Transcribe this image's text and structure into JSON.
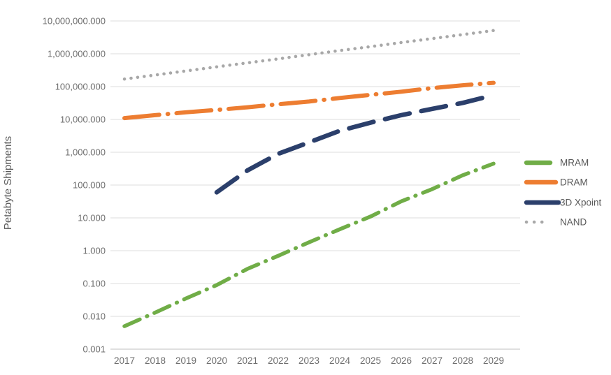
{
  "chart_data": {
    "type": "line",
    "title": "",
    "xlabel": "",
    "ylabel": "Petabyte Shipments",
    "y_scale": "log",
    "ylim": [
      0.001,
      10000000
    ],
    "grid": true,
    "legend_position": "right",
    "x_categories": [
      "2017",
      "2018",
      "2019",
      "2020",
      "2021",
      "2022",
      "2023",
      "2024",
      "2025",
      "2026",
      "2027",
      "2028",
      "2029"
    ],
    "y_ticks": [
      {
        "label": "10,000,000.000",
        "value": 10000000
      },
      {
        "label": "1,000,000.000",
        "value": 1000000
      },
      {
        "label": "100,000.000",
        "value": 100000
      },
      {
        "label": "10,000.000",
        "value": 10000
      },
      {
        "label": "1,000.000",
        "value": 1000
      },
      {
        "label": "100.000",
        "value": 100
      },
      {
        "label": "10.000",
        "value": 10
      },
      {
        "label": "1.000",
        "value": 1
      },
      {
        "label": "0.100",
        "value": 0.1
      },
      {
        "label": "0.010",
        "value": 0.01
      },
      {
        "label": "0.001",
        "value": 0.001
      }
    ],
    "series": [
      {
        "name": "MRAM",
        "color": "#70AD47",
        "line_style": "dash-dot",
        "values": [
          0.005,
          0.013,
          0.035,
          0.09,
          0.28,
          0.7,
          1.8,
          4.5,
          11,
          32,
          75,
          200,
          450
        ]
      },
      {
        "name": "DRAM",
        "color": "#ED7D31",
        "line_style": "long-dash-dot",
        "values": [
          11000,
          13500,
          16500,
          19500,
          23500,
          29000,
          35000,
          45000,
          56000,
          70000,
          90000,
          110000,
          130000
        ]
      },
      {
        "name": "3D Xpoint",
        "color": "#2B3F6B",
        "line_style": "long-dash",
        "values": [
          null,
          null,
          null,
          60,
          280,
          900,
          2000,
          4500,
          8000,
          13500,
          21000,
          32000,
          55000
        ]
      },
      {
        "name": "NAND",
        "color": "#A8A8A8",
        "line_style": "dot",
        "values": [
          170000,
          225000,
          300000,
          400000,
          530000,
          700000,
          940000,
          1250000,
          1650000,
          2200000,
          2900000,
          3850000,
          5100000
        ]
      }
    ],
    "colors": {
      "gridline": "#DCDCDC",
      "axis_line": "#BFBFBF",
      "tick_text": "#6E6E6E",
      "legend_text": "#595959"
    }
  }
}
